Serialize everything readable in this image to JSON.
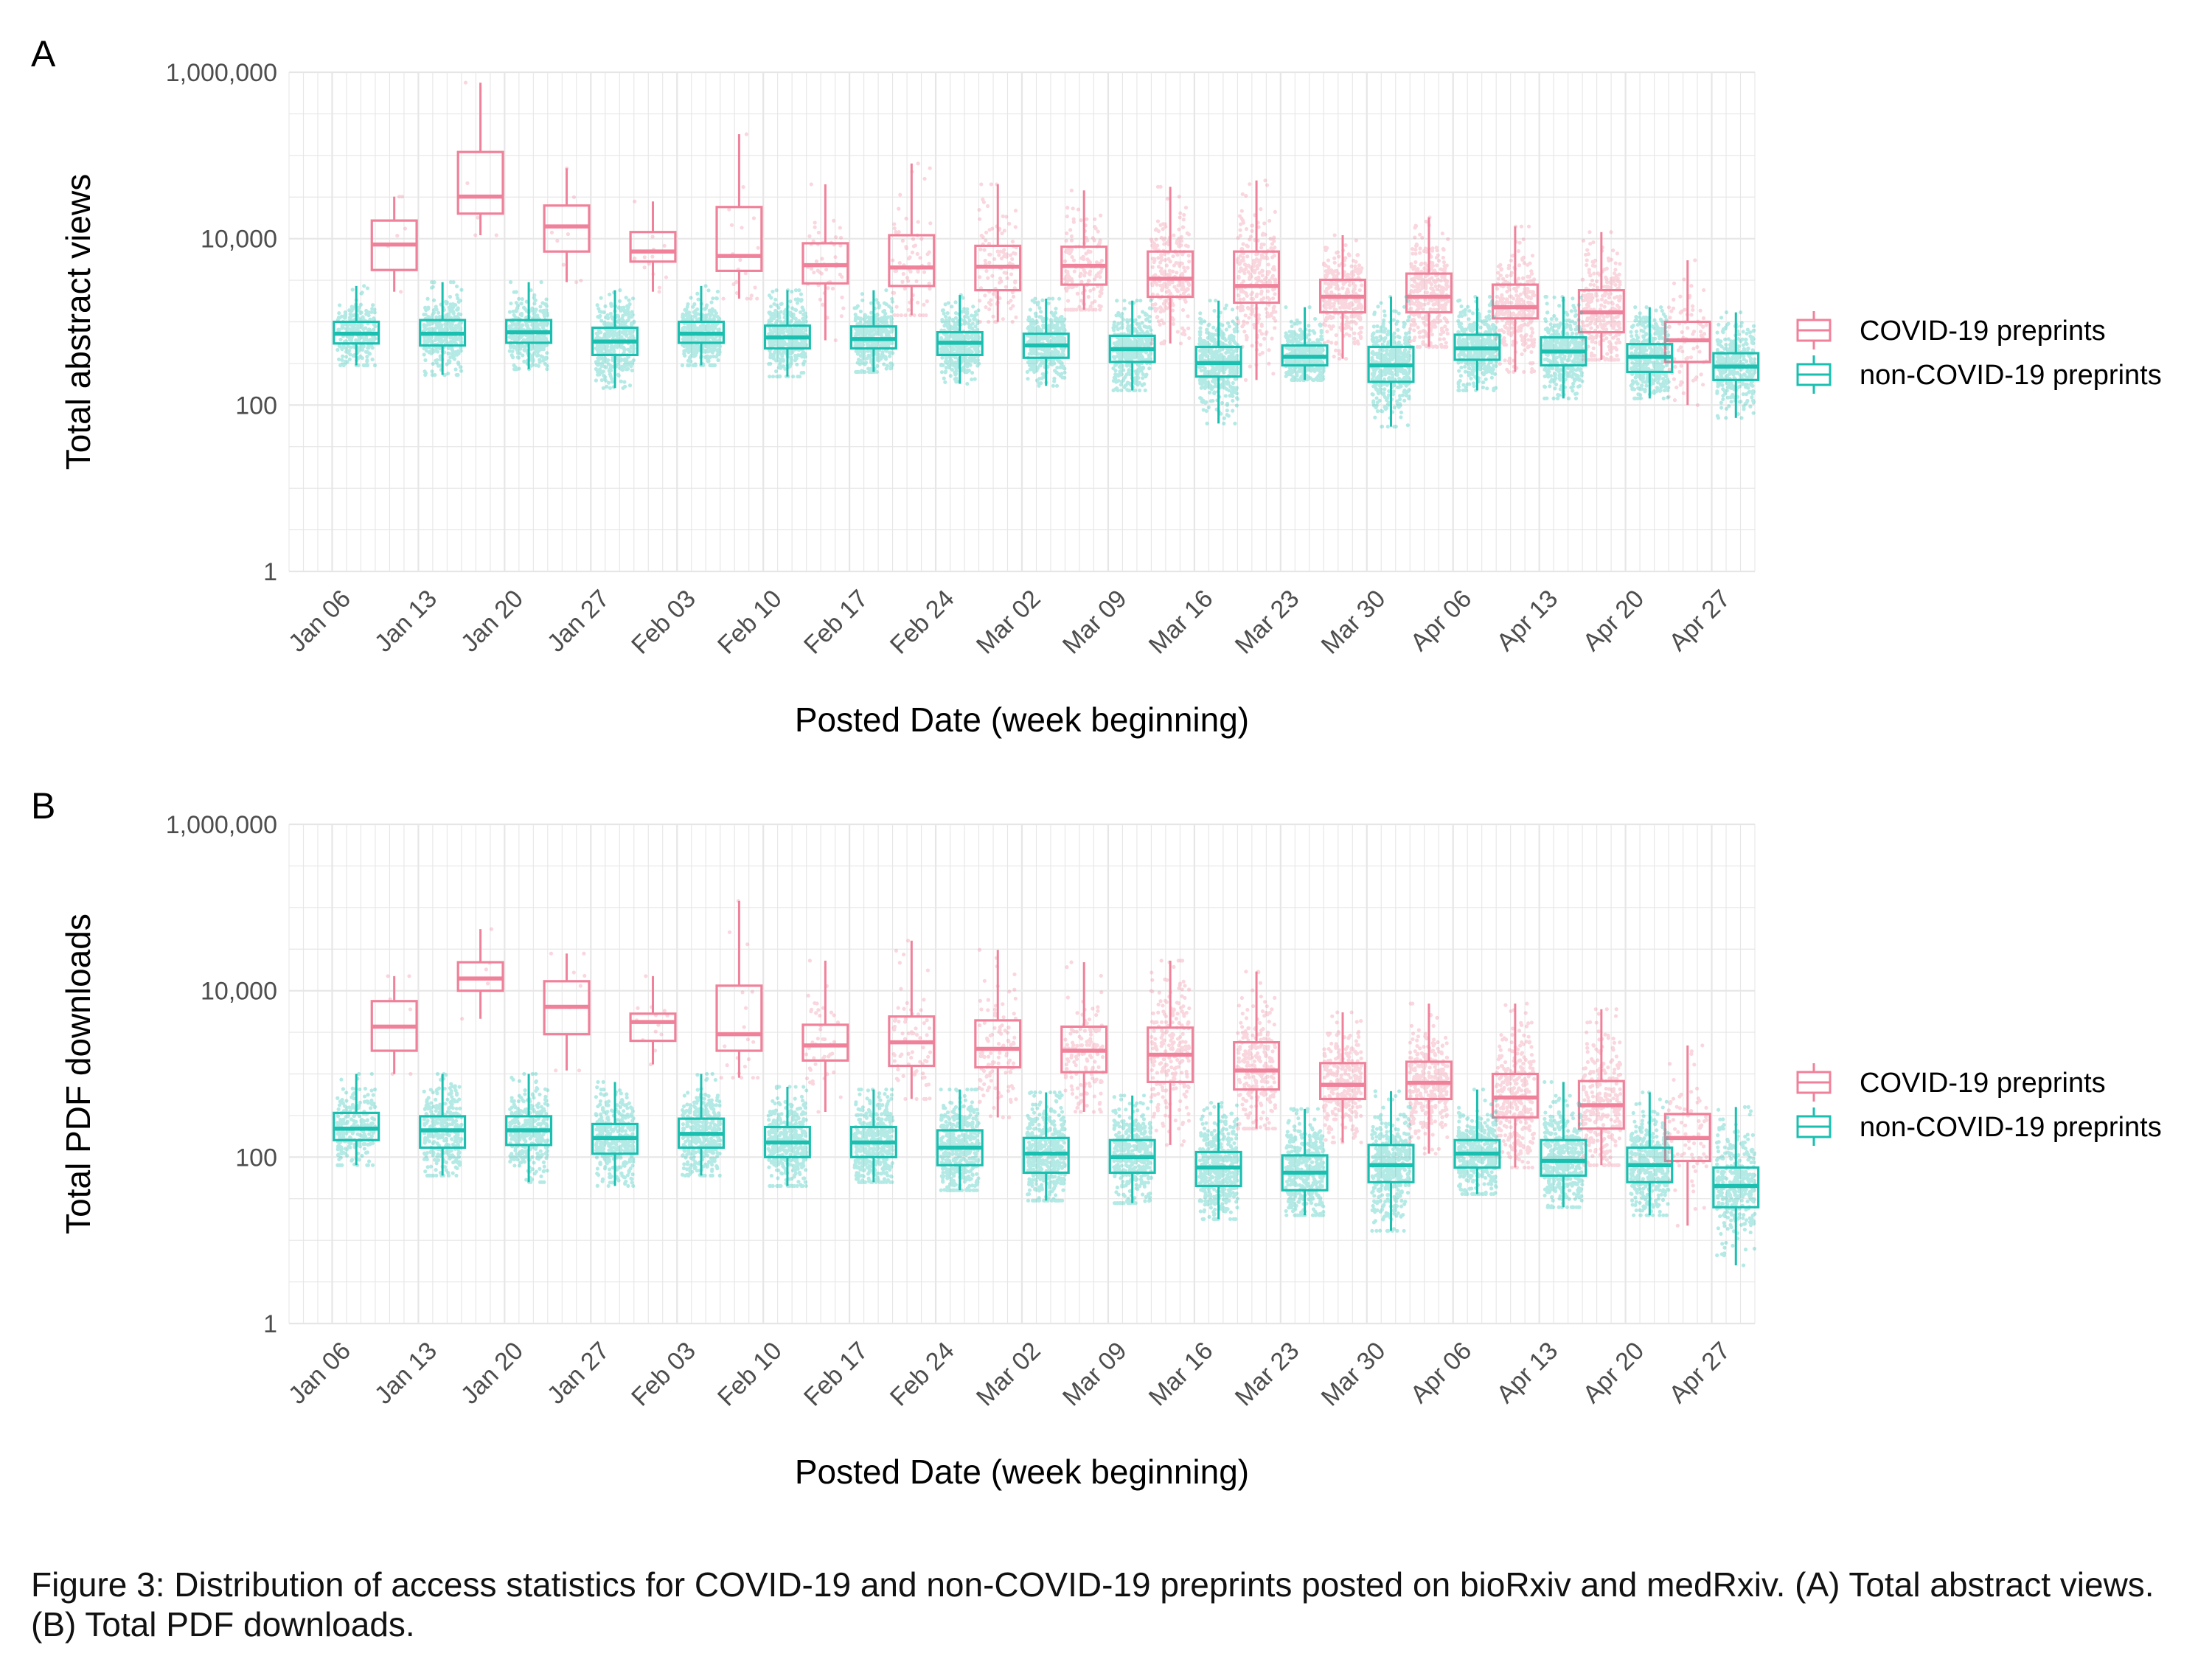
{
  "colors": {
    "covid": "#F0819A",
    "noncovid": "#1ABFB0",
    "grid": "#E6E6E6",
    "tick_text": "#4D4D4D"
  },
  "legend": {
    "covid": "COVID-19 preprints",
    "noncovid": "non-COVID-19 preprints"
  },
  "caption": "Figure 3: Distribution of access statistics for COVID-19 and non-COVID-19 preprints posted on bioRxiv and medRxiv. (A) Total abstract views. (B) Total PDF downloads.",
  "chart_data": [
    {
      "type": "box",
      "panel_label": "A",
      "xlabel": "Posted Date (week beginning)",
      "ylabel": "Total abstract views",
      "y_scale": "log10",
      "ylim": [
        1,
        1000000
      ],
      "y_ticks": [
        1,
        100,
        10000,
        1000000
      ],
      "y_tick_labels": [
        "1",
        "100",
        "10,000",
        "1,000,000"
      ],
      "grid": true,
      "legend_position": "right",
      "categories": [
        "Jan 06",
        "Jan 13",
        "Jan 20",
        "Jan 27",
        "Feb 03",
        "Feb 10",
        "Feb 17",
        "Feb 24",
        "Mar 02",
        "Mar 09",
        "Mar 16",
        "Mar 23",
        "Mar 30",
        "Apr 06",
        "Apr 13",
        "Apr 20",
        "Apr 27"
      ],
      "series": [
        {
          "name": "COVID-19 preprints",
          "color": "#F0819A",
          "boxes": [
            null,
            {
              "min": 2300,
              "q1": 4200,
              "median": 8500,
              "q3": 16500,
              "max": 32000,
              "n": 6
            },
            {
              "min": 11000,
              "q1": 20000,
              "median": 32000,
              "q3": 110000,
              "max": 750000,
              "n": 5
            },
            {
              "min": 3000,
              "q1": 7000,
              "median": 14000,
              "q3": 25000,
              "max": 70000,
              "n": 8
            },
            {
              "min": 2300,
              "q1": 5300,
              "median": 7000,
              "q3": 12000,
              "max": 28000,
              "n": 14
            },
            {
              "min": 1900,
              "q1": 4100,
              "median": 6200,
              "q3": 24000,
              "max": 180000,
              "n": 20
            },
            {
              "min": 600,
              "q1": 2900,
              "median": 4800,
              "q3": 8800,
              "max": 45000,
              "n": 45
            },
            {
              "min": 1200,
              "q1": 2700,
              "median": 4500,
              "q3": 11000,
              "max": 80000,
              "n": 70
            },
            {
              "min": 1000,
              "q1": 2400,
              "median": 4600,
              "q3": 8200,
              "max": 45000,
              "n": 110
            },
            {
              "min": 1400,
              "q1": 2800,
              "median": 4700,
              "q3": 8000,
              "max": 38000,
              "n": 150
            },
            {
              "min": 550,
              "q1": 2000,
              "median": 3300,
              "q3": 7000,
              "max": 42000,
              "n": 230
            },
            {
              "min": 200,
              "q1": 1700,
              "median": 2700,
              "q3": 7000,
              "max": 50000,
              "n": 260
            },
            {
              "min": 360,
              "q1": 1300,
              "median": 2000,
              "q3": 3200,
              "max": 11000,
              "n": 300
            },
            {
              "min": 500,
              "q1": 1300,
              "median": 2000,
              "q3": 3800,
              "max": 18000,
              "n": 330
            },
            {
              "min": 250,
              "q1": 1100,
              "median": 1500,
              "q3": 2800,
              "max": 14000,
              "n": 320
            },
            {
              "min": 350,
              "q1": 750,
              "median": 1300,
              "q3": 2400,
              "max": 12000,
              "n": 290
            },
            {
              "min": 100,
              "q1": 330,
              "median": 600,
              "q3": 1000,
              "max": 5500,
              "n": 80
            }
          ]
        },
        {
          "name": "non-COVID-19 preprints",
          "color": "#1ABFB0",
          "boxes": [
            {
              "min": 300,
              "q1": 550,
              "median": 720,
              "q3": 1000,
              "max": 2700,
              "n": 250
            },
            {
              "min": 230,
              "q1": 520,
              "median": 720,
              "q3": 1050,
              "max": 3000,
              "n": 350
            },
            {
              "min": 270,
              "q1": 560,
              "median": 750,
              "q3": 1050,
              "max": 3000,
              "n": 350
            },
            {
              "min": 160,
              "q1": 400,
              "median": 580,
              "q3": 850,
              "max": 2400,
              "n": 370
            },
            {
              "min": 300,
              "q1": 560,
              "median": 720,
              "q3": 1000,
              "max": 2700,
              "n": 400
            },
            {
              "min": 220,
              "q1": 480,
              "median": 650,
              "q3": 900,
              "max": 2400,
              "n": 420
            },
            {
              "min": 250,
              "q1": 480,
              "median": 620,
              "q3": 880,
              "max": 2400,
              "n": 420
            },
            {
              "min": 180,
              "q1": 400,
              "median": 560,
              "q3": 750,
              "max": 2100,
              "n": 430
            },
            {
              "min": 170,
              "q1": 370,
              "median": 520,
              "q3": 720,
              "max": 1900,
              "n": 440
            },
            {
              "min": 150,
              "q1": 330,
              "median": 470,
              "q3": 680,
              "max": 1800,
              "n": 440
            },
            {
              "min": 60,
              "q1": 220,
              "median": 320,
              "q3": 500,
              "max": 1800,
              "n": 480
            },
            {
              "min": 200,
              "q1": 300,
              "median": 380,
              "q3": 520,
              "max": 1500,
              "n": 420
            },
            {
              "min": 55,
              "q1": 190,
              "median": 300,
              "q3": 500,
              "max": 2000,
              "n": 450
            },
            {
              "min": 150,
              "q1": 350,
              "median": 480,
              "q3": 700,
              "max": 2000,
              "n": 440
            },
            {
              "min": 120,
              "q1": 300,
              "median": 440,
              "q3": 650,
              "max": 2000,
              "n": 420
            },
            {
              "min": 120,
              "q1": 250,
              "median": 380,
              "q3": 540,
              "max": 1500,
              "n": 420
            },
            {
              "min": 70,
              "q1": 200,
              "median": 290,
              "q3": 420,
              "max": 1300,
              "n": 350
            }
          ]
        }
      ]
    },
    {
      "type": "box",
      "panel_label": "B",
      "xlabel": "Posted Date (week beginning)",
      "ylabel": "Total PDF downloads",
      "y_scale": "log10",
      "ylim": [
        1,
        1000000
      ],
      "y_ticks": [
        1,
        100,
        10000,
        1000000
      ],
      "y_tick_labels": [
        "1",
        "100",
        "10,000",
        "1,000,000"
      ],
      "grid": true,
      "legend_position": "right",
      "categories": [
        "Jan 06",
        "Jan 13",
        "Jan 20",
        "Jan 27",
        "Feb 03",
        "Feb 10",
        "Feb 17",
        "Feb 24",
        "Mar 02",
        "Mar 09",
        "Mar 16",
        "Mar 23",
        "Mar 30",
        "Apr 06",
        "Apr 13",
        "Apr 20",
        "Apr 27"
      ],
      "series": [
        {
          "name": "COVID-19 preprints",
          "color": "#F0819A",
          "boxes": [
            null,
            {
              "min": 1000,
              "q1": 1900,
              "median": 3700,
              "q3": 7500,
              "max": 15000,
              "n": 6
            },
            {
              "min": 4600,
              "q1": 10000,
              "median": 14000,
              "q3": 22000,
              "max": 55000,
              "n": 5
            },
            {
              "min": 1100,
              "q1": 3000,
              "median": 6400,
              "q3": 13000,
              "max": 28000,
              "n": 8
            },
            {
              "min": 1300,
              "q1": 2500,
              "median": 4200,
              "q3": 5300,
              "max": 15000,
              "n": 14
            },
            {
              "min": 900,
              "q1": 1900,
              "median": 3000,
              "q3": 11500,
              "max": 120000,
              "n": 20
            },
            {
              "min": 350,
              "q1": 1450,
              "median": 2200,
              "q3": 3900,
              "max": 23000,
              "n": 45
            },
            {
              "min": 500,
              "q1": 1250,
              "median": 2400,
              "q3": 4900,
              "max": 40000,
              "n": 70
            },
            {
              "min": 300,
              "q1": 1200,
              "median": 2000,
              "q3": 4400,
              "max": 31000,
              "n": 110
            },
            {
              "min": 350,
              "q1": 1050,
              "median": 1900,
              "q3": 3700,
              "max": 22000,
              "n": 150
            },
            {
              "min": 140,
              "q1": 800,
              "median": 1700,
              "q3": 3600,
              "max": 23000,
              "n": 230
            },
            {
              "min": 220,
              "q1": 650,
              "median": 1100,
              "q3": 2400,
              "max": 17000,
              "n": 260
            },
            {
              "min": 150,
              "q1": 500,
              "median": 740,
              "q3": 1350,
              "max": 5500,
              "n": 300
            },
            {
              "min": 110,
              "q1": 500,
              "median": 780,
              "q3": 1400,
              "max": 7000,
              "n": 330
            },
            {
              "min": 75,
              "q1": 300,
              "median": 520,
              "q3": 1000,
              "max": 7000,
              "n": 320
            },
            {
              "min": 80,
              "q1": 220,
              "median": 420,
              "q3": 820,
              "max": 6000,
              "n": 290
            },
            {
              "min": 15,
              "q1": 90,
              "median": 170,
              "q3": 330,
              "max": 2200,
              "n": 80
            }
          ]
        },
        {
          "name": "non-COVID-19 preprints",
          "color": "#1ABFB0",
          "boxes": [
            {
              "min": 80,
              "q1": 160,
              "median": 220,
              "q3": 340,
              "max": 1000,
              "n": 250
            },
            {
              "min": 60,
              "q1": 130,
              "median": 210,
              "q3": 310,
              "max": 1000,
              "n": 350
            },
            {
              "min": 50,
              "q1": 140,
              "median": 210,
              "q3": 310,
              "max": 1000,
              "n": 350
            },
            {
              "min": 45,
              "q1": 110,
              "median": 170,
              "q3": 250,
              "max": 800,
              "n": 370
            },
            {
              "min": 60,
              "q1": 130,
              "median": 190,
              "q3": 290,
              "max": 1000,
              "n": 400
            },
            {
              "min": 45,
              "q1": 100,
              "median": 150,
              "q3": 230,
              "max": 700,
              "n": 420
            },
            {
              "min": 50,
              "q1": 100,
              "median": 150,
              "q3": 230,
              "max": 650,
              "n": 420
            },
            {
              "min": 40,
              "q1": 80,
              "median": 130,
              "q3": 210,
              "max": 650,
              "n": 430
            },
            {
              "min": 30,
              "q1": 65,
              "median": 110,
              "q3": 170,
              "max": 600,
              "n": 440
            },
            {
              "min": 28,
              "q1": 65,
              "median": 100,
              "q3": 160,
              "max": 550,
              "n": 440
            },
            {
              "min": 18,
              "q1": 45,
              "median": 75,
              "q3": 115,
              "max": 450,
              "n": 480
            },
            {
              "min": 20,
              "q1": 40,
              "median": 65,
              "q3": 105,
              "max": 380,
              "n": 420
            },
            {
              "min": 13,
              "q1": 50,
              "median": 80,
              "q3": 140,
              "max": 620,
              "n": 450
            },
            {
              "min": 36,
              "q1": 75,
              "median": 110,
              "q3": 160,
              "max": 650,
              "n": 440
            },
            {
              "min": 25,
              "q1": 60,
              "median": 90,
              "q3": 160,
              "max": 800,
              "n": 420
            },
            {
              "min": 20,
              "q1": 50,
              "median": 80,
              "q3": 130,
              "max": 600,
              "n": 420
            },
            {
              "min": 5,
              "q1": 25,
              "median": 45,
              "q3": 75,
              "max": 400,
              "n": 350
            }
          ]
        }
      ]
    }
  ]
}
